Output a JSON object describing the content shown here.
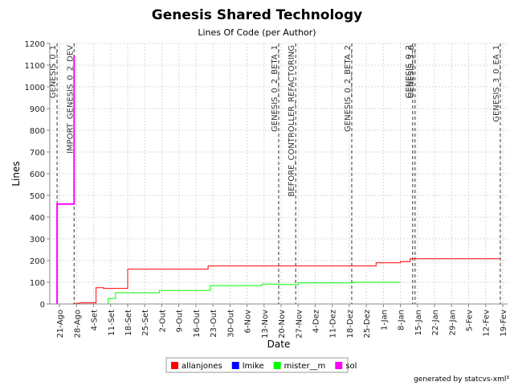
{
  "chart_data": {
    "type": "line",
    "title": "Genesis Shared Technology",
    "subtitle": "Lines Of Code (per Author)",
    "xlabel": "Date",
    "ylabel": "Lines",
    "ylim": [
      0,
      1200
    ],
    "yticks": [
      0,
      100,
      200,
      300,
      400,
      500,
      600,
      700,
      800,
      900,
      1000,
      1100,
      1200
    ],
    "xlim": [
      "2005-08-17",
      "2006-02-21"
    ],
    "xticks": [
      {
        "date": "2005-08-21",
        "label": "21-Ago"
      },
      {
        "date": "2005-08-28",
        "label": "28-Ago"
      },
      {
        "date": "2005-09-04",
        "label": "4-Set"
      },
      {
        "date": "2005-09-11",
        "label": "11-Set"
      },
      {
        "date": "2005-09-18",
        "label": "18-Set"
      },
      {
        "date": "2005-09-25",
        "label": "25-Set"
      },
      {
        "date": "2005-10-02",
        "label": "2-Out"
      },
      {
        "date": "2005-10-09",
        "label": "9-Out"
      },
      {
        "date": "2005-10-16",
        "label": "16-Out"
      },
      {
        "date": "2005-10-23",
        "label": "23-Out"
      },
      {
        "date": "2005-10-30",
        "label": "30-Out"
      },
      {
        "date": "2005-11-06",
        "label": "6-Nov"
      },
      {
        "date": "2005-11-13",
        "label": "13-Nov"
      },
      {
        "date": "2005-11-20",
        "label": "20-Nov"
      },
      {
        "date": "2005-11-27",
        "label": "27-Nov"
      },
      {
        "date": "2005-12-04",
        "label": "4-Dez"
      },
      {
        "date": "2005-12-11",
        "label": "11-Dez"
      },
      {
        "date": "2005-12-18",
        "label": "18-Dez"
      },
      {
        "date": "2005-12-25",
        "label": "25-Dez"
      },
      {
        "date": "2006-01-01",
        "label": "1-Jan"
      },
      {
        "date": "2006-01-08",
        "label": "8-Jan"
      },
      {
        "date": "2006-01-15",
        "label": "15-Jan"
      },
      {
        "date": "2006-01-22",
        "label": "22-Jan"
      },
      {
        "date": "2006-01-29",
        "label": "29-Jan"
      },
      {
        "date": "2006-02-05",
        "label": "5-Fev"
      },
      {
        "date": "2006-02-12",
        "label": "12-Fev"
      },
      {
        "date": "2006-02-19",
        "label": "19-Fev"
      }
    ],
    "grid": true,
    "legend_position": "bottom",
    "markers": [
      {
        "date": "2005-08-20",
        "label": "GENESIS_0_1"
      },
      {
        "date": "2005-08-27",
        "label": "IMPORT_GENESIS_0_2_DEV"
      },
      {
        "date": "2005-11-19",
        "label": "GENESIS_0_2_BETA_1"
      },
      {
        "date": "2005-11-26",
        "label": "BEFORE_CONTROLLER_REFACTORING"
      },
      {
        "date": "2005-12-19",
        "label": "GENESIS_0_2_BETA_2"
      },
      {
        "date": "2006-01-13",
        "label": "GENESIS_0_2"
      },
      {
        "date": "2006-01-14",
        "label": "GENESIS_3_0"
      },
      {
        "date": "2006-02-18",
        "label": "GENESIS_3_0_EA_1"
      }
    ],
    "series": [
      {
        "name": "allanjones",
        "color": "#ff0000",
        "step": true,
        "points": [
          {
            "x": "2005-08-26",
            "y": 0
          },
          {
            "x": "2005-08-30",
            "y": 5
          },
          {
            "x": "2005-09-05",
            "y": 5
          },
          {
            "x": "2005-09-05",
            "y": 75
          },
          {
            "x": "2005-09-08",
            "y": 75
          },
          {
            "x": "2005-09-08",
            "y": 72
          },
          {
            "x": "2005-09-18",
            "y": 72
          },
          {
            "x": "2005-09-18",
            "y": 160
          },
          {
            "x": "2005-10-21",
            "y": 160
          },
          {
            "x": "2005-10-21",
            "y": 175
          },
          {
            "x": "2005-12-29",
            "y": 175
          },
          {
            "x": "2005-12-29",
            "y": 190
          },
          {
            "x": "2006-01-08",
            "y": 190
          },
          {
            "x": "2006-01-08",
            "y": 195
          },
          {
            "x": "2006-01-12",
            "y": 195
          },
          {
            "x": "2006-01-12",
            "y": 208
          },
          {
            "x": "2006-02-18",
            "y": 208
          }
        ]
      },
      {
        "name": "lmike",
        "color": "#0000ff",
        "step": true,
        "points": [
          {
            "x": "2005-08-28",
            "y": 0
          },
          {
            "x": "2006-01-10",
            "y": 0
          }
        ]
      },
      {
        "name": "mister__m",
        "color": "#00ff00",
        "step": true,
        "points": [
          {
            "x": "2005-08-28",
            "y": 0
          },
          {
            "x": "2005-09-10",
            "y": 0
          },
          {
            "x": "2005-09-10",
            "y": 25
          },
          {
            "x": "2005-09-13",
            "y": 25
          },
          {
            "x": "2005-09-13",
            "y": 52
          },
          {
            "x": "2005-10-01",
            "y": 52
          },
          {
            "x": "2005-10-01",
            "y": 62
          },
          {
            "x": "2005-10-22",
            "y": 62
          },
          {
            "x": "2005-10-22",
            "y": 85
          },
          {
            "x": "2005-11-12",
            "y": 85
          },
          {
            "x": "2005-11-12",
            "y": 92
          },
          {
            "x": "2005-11-19",
            "y": 92
          },
          {
            "x": "2005-11-19",
            "y": 90
          },
          {
            "x": "2005-11-27",
            "y": 90
          },
          {
            "x": "2005-11-27",
            "y": 97
          },
          {
            "x": "2005-12-20",
            "y": 97
          },
          {
            "x": "2005-12-20",
            "y": 100
          },
          {
            "x": "2006-01-08",
            "y": 100
          }
        ]
      },
      {
        "name": "sol",
        "color": "#ff00ff",
        "step": true,
        "points": [
          {
            "x": "2005-08-20",
            "y": 0
          },
          {
            "x": "2005-08-20",
            "y": 460
          },
          {
            "x": "2005-08-27",
            "y": 460
          },
          {
            "x": "2005-08-27",
            "y": 850
          },
          {
            "x": "2005-08-27",
            "y": 1145
          }
        ]
      }
    ]
  },
  "footer": "generated by statcvs-xml³"
}
